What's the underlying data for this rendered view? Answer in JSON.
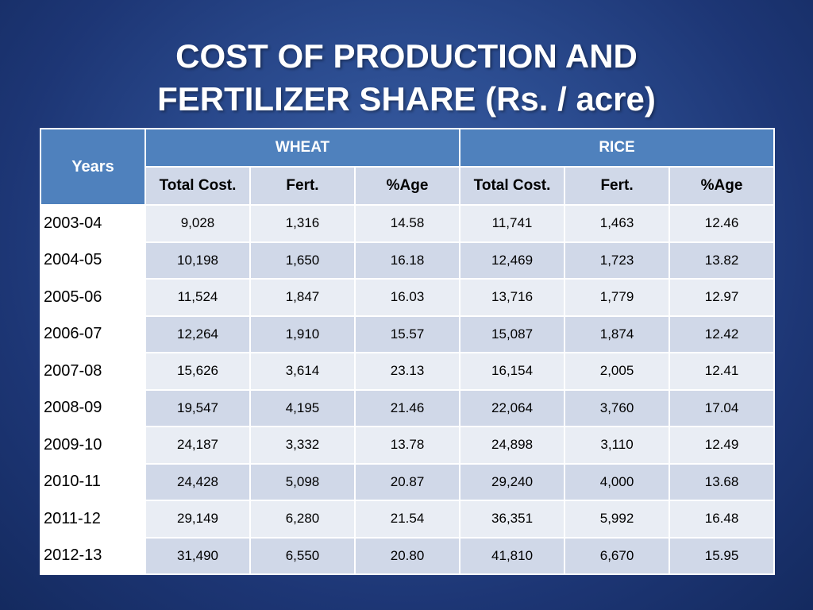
{
  "title": {
    "line1": "COST OF PRODUCTION AND",
    "line2": "FERTILIZER SHARE  (Rs. / acre)"
  },
  "table": {
    "years_header": "Years",
    "groups": [
      "WHEAT",
      "RICE"
    ],
    "sub_headers": [
      "Total Cost.",
      "Fert.",
      "%Age",
      "Total Cost.",
      "Fert.",
      "%Age"
    ],
    "rows": [
      {
        "year": "2003-04",
        "values": [
          "9,028",
          "1,316",
          "14.58",
          "11,741",
          "1,463",
          "12.46"
        ]
      },
      {
        "year": "2004-05",
        "values": [
          "10,198",
          "1,650",
          "16.18",
          "12,469",
          "1,723",
          "13.82"
        ]
      },
      {
        "year": "2005-06",
        "values": [
          "11,524",
          "1,847",
          "16.03",
          "13,716",
          "1,779",
          "12.97"
        ]
      },
      {
        "year": "2006-07",
        "values": [
          "12,264",
          "1,910",
          "15.57",
          "15,087",
          "1,874",
          "12.42"
        ]
      },
      {
        "year": "2007-08",
        "values": [
          "15,626",
          "3,614",
          "23.13",
          "16,154",
          "2,005",
          "12.41"
        ]
      },
      {
        "year": "2008-09",
        "values": [
          "19,547",
          "4,195",
          "21.46",
          "22,064",
          "3,760",
          "17.04"
        ]
      },
      {
        "year": "2009-10",
        "values": [
          "24,187",
          "3,332",
          "13.78",
          "24,898",
          "3,110",
          "12.49"
        ]
      },
      {
        "year": "2010-11",
        "values": [
          "24,428",
          "5,098",
          "20.87",
          "29,240",
          "4,000",
          "13.68"
        ]
      },
      {
        "year": "2011-12",
        "values": [
          "29,149",
          "6,280",
          "21.54",
          "36,351",
          "5,992",
          "16.48"
        ]
      },
      {
        "year": "2012-13",
        "values": [
          "31,490",
          "6,550",
          "20.80",
          "41,810",
          "6,670",
          "15.95"
        ]
      }
    ]
  },
  "colors": {
    "header_blue": "#4f81bd",
    "band_dark": "#d0d8e8",
    "band_light": "#e9edf4",
    "background": "#2c4d91"
  }
}
